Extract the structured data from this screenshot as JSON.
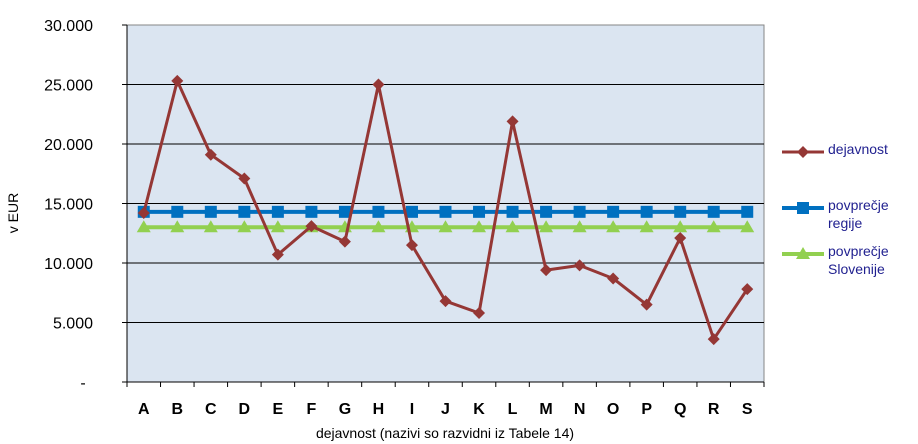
{
  "chart_data": {
    "type": "line",
    "xlabel": "dejavnost  (nazivi so razvidni iz Tabele 14)",
    "ylabel": "v EUR",
    "ylim": [
      0,
      30000
    ],
    "yticks": [
      {
        "value": 0,
        "label": "-"
      },
      {
        "value": 5000,
        "label": "5.000"
      },
      {
        "value": 10000,
        "label": "10.000"
      },
      {
        "value": 15000,
        "label": "15.000"
      },
      {
        "value": 20000,
        "label": "20.000"
      },
      {
        "value": 25000,
        "label": "25.000"
      },
      {
        "value": 30000,
        "label": "30.000"
      }
    ],
    "categories": [
      "A",
      "B",
      "C",
      "D",
      "E",
      "F",
      "G",
      "H",
      "I",
      "J",
      "K",
      "L",
      "M",
      "N",
      "O",
      "P",
      "Q",
      "R",
      "S"
    ],
    "grid": "horizontal",
    "legend_position": "right",
    "series": [
      {
        "name": "dejavnost",
        "color": "#953735",
        "marker": "diamond",
        "values": [
          14200,
          25300,
          19100,
          17100,
          10700,
          13100,
          11800,
          25000,
          11500,
          6800,
          5800,
          21900,
          9400,
          9800,
          8700,
          6500,
          12100,
          3600,
          7800
        ]
      },
      {
        "name": "povprečje\nregije",
        "color": "#0070c0",
        "marker": "square",
        "values": [
          14300,
          14300,
          14300,
          14300,
          14300,
          14300,
          14300,
          14300,
          14300,
          14300,
          14300,
          14300,
          14300,
          14300,
          14300,
          14300,
          14300,
          14300,
          14300
        ]
      },
      {
        "name": "povprečje\nSlovenije",
        "color": "#92d050",
        "marker": "triangle",
        "values": [
          13000,
          13000,
          13000,
          13000,
          13000,
          13000,
          13000,
          13000,
          13000,
          13000,
          13000,
          13000,
          13000,
          13000,
          13000,
          13000,
          13000,
          13000,
          13000
        ]
      }
    ]
  }
}
